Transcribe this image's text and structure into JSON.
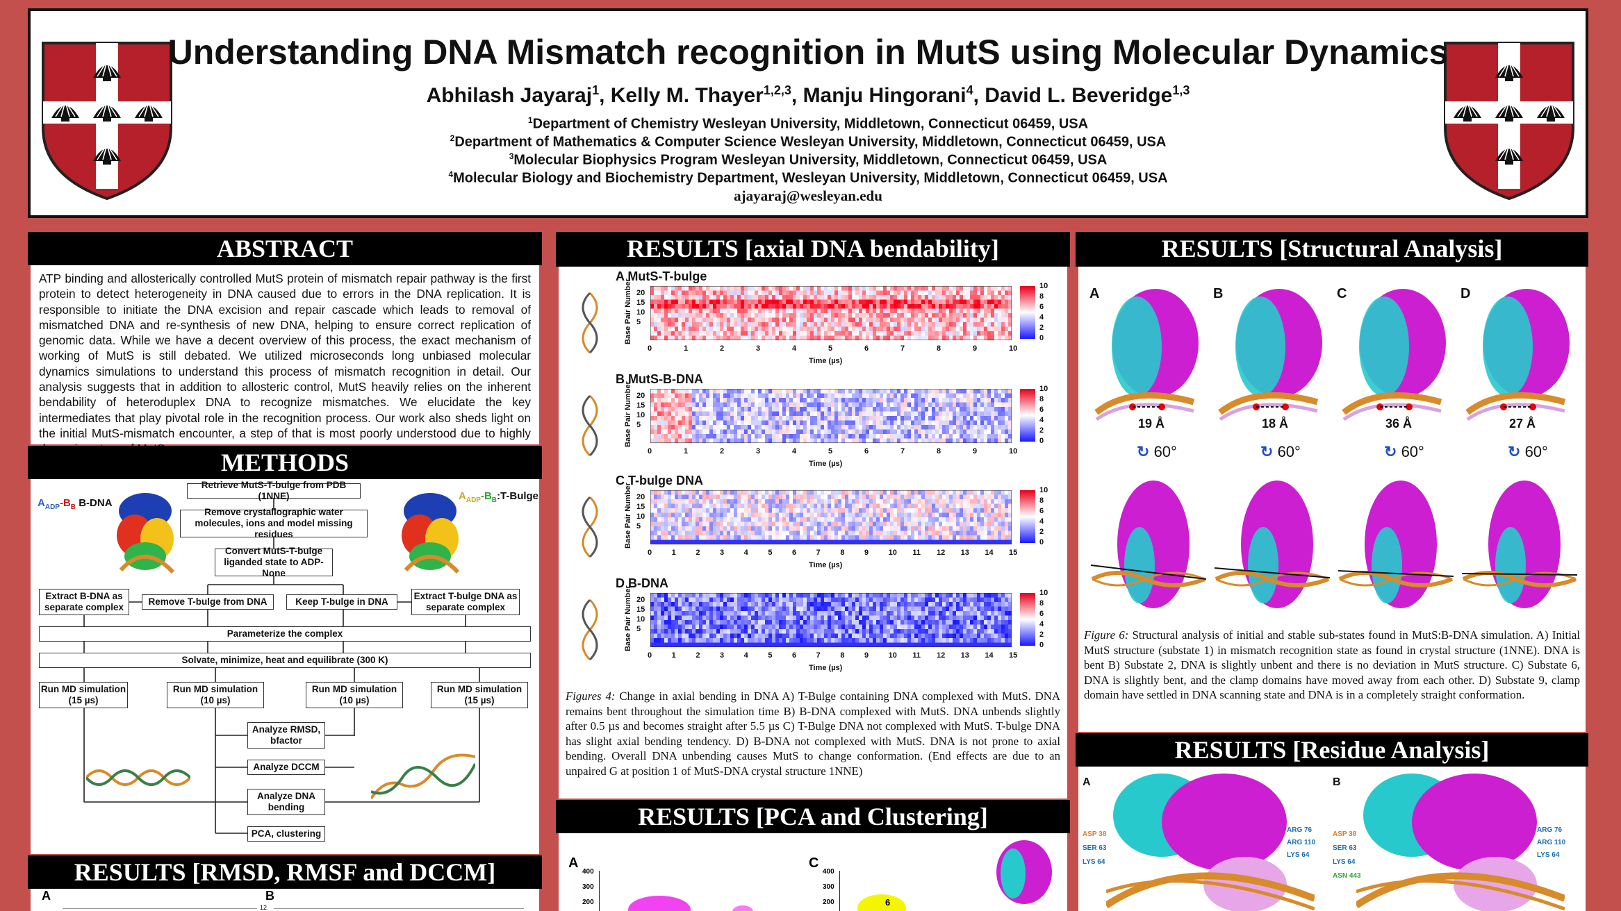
{
  "header": {
    "title": "Understanding DNA Mismatch recognition in MutS using Molecular Dynamics",
    "authors": [
      {
        "name": "Abhilash Jayaraj",
        "sup": "1"
      },
      {
        "name": "Kelly M. Thayer",
        "sup": "1,2,3"
      },
      {
        "name": "Manju Hingorani",
        "sup": "4"
      },
      {
        "name": "David L. Beveridge",
        "sup": "1,3"
      }
    ],
    "affiliations": [
      {
        "sup": "1",
        "text": "Department of Chemistry Wesleyan University, Middletown, Connecticut 06459, USA"
      },
      {
        "sup": "2",
        "text": "Department of Mathematics & Computer Science Wesleyan University, Middletown, Connecticut 06459, USA"
      },
      {
        "sup": "3",
        "text": "Molecular Biophysics Program Wesleyan University, Middletown, Connecticut 06459, USA"
      },
      {
        "sup": "4",
        "text": "Molecular Biology and Biochemistry Department, Wesleyan University, Middletown, Connecticut 06459, USA"
      }
    ],
    "email": "ajayaraj@wesleyan.edu",
    "crest_colors": {
      "red": "#b5202a",
      "white": "#ffffff",
      "outline": "#222222"
    }
  },
  "abstract": {
    "heading": "ABSTRACT",
    "text": "ATP binding and allosterically controlled MutS protein of mismatch repair pathway is the first protein to detect heterogeneity in DNA caused due to errors in the DNA replication. It is responsible to initiate the DNA excision and repair cascade which leads to removal of mismatched DNA and re-synthesis of new DNA, helping to ensure correct replication of genomic data. While we have a decent overview of this process, the exact mechanism of working of MutS is still debated. We utilized microseconds long unbiased molecular dynamics simulations to understand this process of mismatch recognition in detail. Our analysis suggests that in addition to allosteric control, MutS heavily relies on the inherent bendability of heteroduplex DNA to recognize mismatches. We elucidate the key intermediates that play pivotal role in the recognition process. Our work also sheds light on the initial MutS-mismatch encounter, a step of that is most poorly understood due to highly dynamic nature of MutS."
  },
  "methods": {
    "heading": "METHODS",
    "left_label": {
      "prefix": "A",
      "sub1": "ADP",
      "mid": "-B",
      "sub2": "B",
      "suffix": " B-DNA"
    },
    "right_label": {
      "prefix": "A",
      "sub1": "ADP",
      "mid": "-B",
      "sub2": "B",
      "suffix": ":T-Bulge"
    },
    "boxes": {
      "retrieve": "Retrieve MutS-T-bulge from PDB (1NNE)",
      "remove_water": "Remove crystallographic water molecules, ions and model missing residues",
      "convert": "Convert MutS-T-bulge liganded state to ADP-None",
      "extract_bdna": "Extract B-DNA as separate complex",
      "remove_tbulge": "Remove T-bulge from DNA",
      "keep_tbulge": "Keep T-bulge in DNA",
      "extract_tbulge": "Extract T-bulge DNA as separate complex",
      "parameterize": "Parameterize the complex",
      "solvate": "Solvate, minimize, heat and equilibrate (300 K)",
      "md1": "Run MD simulation (15 µs)",
      "md2": "Run MD simulation (10 µs)",
      "md3": "Run MD simulation (10 µs)",
      "md4": "Run MD simulation (15 µs)",
      "rmsd": "Analyze RMSD, bfactor",
      "dccm": "Analyze DCCM",
      "bending": "Analyze DNA bending",
      "pca": "PCA, clustering"
    }
  },
  "rmsd_section": {
    "heading": "RESULTS [RMSD, RMSF and DCCM]",
    "panel_a": "A",
    "panel_b": "B",
    "tick_12": "12"
  },
  "bendability": {
    "heading": "RESULTS [axial DNA bendability]",
    "ylabel": "Base Pair Number",
    "xlabel": "Time (µs)",
    "colorbar_ticks": [
      "10",
      "8",
      "6",
      "4",
      "2",
      "0"
    ],
    "y_ticks": [
      "20",
      "15",
      "10",
      "5"
    ],
    "colors": {
      "low": "#1a1aff",
      "mid": "#ffffff",
      "high": "#e6001a"
    },
    "panels": [
      {
        "letter": "A",
        "name": "MutS-T-bulge",
        "x_ticks": [
          "0",
          "1",
          "2",
          "3",
          "4",
          "5",
          "6",
          "7",
          "8",
          "9",
          "10"
        ]
      },
      {
        "letter": "B",
        "name": "MutS-B-DNA",
        "x_ticks": [
          "0",
          "1",
          "2",
          "3",
          "4",
          "5",
          "6",
          "7",
          "8",
          "9",
          "10"
        ]
      },
      {
        "letter": "C",
        "name": "T-bulge DNA",
        "x_ticks": [
          "0",
          "1",
          "2",
          "3",
          "4",
          "5",
          "6",
          "7",
          "8",
          "9",
          "10",
          "11",
          "12",
          "13",
          "14",
          "15"
        ]
      },
      {
        "letter": "D",
        "name": "B-DNA",
        "x_ticks": [
          "0",
          "1",
          "2",
          "3",
          "4",
          "5",
          "6",
          "7",
          "8",
          "9",
          "10",
          "11",
          "12",
          "13",
          "14",
          "15"
        ]
      }
    ],
    "caption": {
      "label": "Figures 4:",
      "text": " Change in axial bending in DNA A) T-Bulge containing DNA complexed with MutS. DNA remains bent throughout the simulation time B) B-DNA complexed with MutS. DNA unbends slightly after 0.5 µs and becomes straight after 5.5 µs C) T-Bulge DNA not complexed with MutS. T-bulge DNA has slight axial bending tendency. D) B-DNA not complexed with MutS. DNA is not prone to axial bending. Overall DNA unbending causes MutS to change conformation. (End effects are due to an unpaired G at position 1 of MutS-DNA crystal structure 1NNE)"
    }
  },
  "pca": {
    "heading": "RESULTS [PCA and Clustering]",
    "panel_a": "A",
    "panel_c": "C",
    "y_ticks": [
      "400",
      "300",
      "200"
    ],
    "cluster_label": "6"
  },
  "structural": {
    "heading": "RESULTS [Structural Analysis]",
    "panels": [
      {
        "letter": "A",
        "distance": "19 Å"
      },
      {
        "letter": "B",
        "distance": "18 Å"
      },
      {
        "letter": "C",
        "distance": "36 Å"
      },
      {
        "letter": "D",
        "distance": "27 Å"
      }
    ],
    "rotation": "60°",
    "colors": {
      "magenta": "#cc1fd1",
      "cyan": "#27c9cc",
      "dna": "#d78b2a"
    },
    "caption": {
      "label": "Figure 6:",
      "text": " Structural analysis of initial and stable sub-states found in MutS:B-DNA simulation. A) Initial MutS structure (substate 1) in mismatch recognition state as found in crystal structure (1NNE). DNA is bent B) Substate 2, DNA is slightly unbent and there is no deviation in MutS structure. C) Substate 6, DNA is slightly bent, and the clamp domains have moved away from each other. D) Substate 9, clamp domain have settled in DNA scanning state and DNA is in a completely straight conformation."
    }
  },
  "residue": {
    "heading": "RESULTS [Residue Analysis]",
    "panel_a": "A",
    "panel_b": "B",
    "labels_a_left": [
      "ASP 38",
      "SER 63",
      "LYS 64"
    ],
    "labels_a_right": [
      "ARG 76",
      "ARG 110",
      "LYS 64"
    ],
    "labels_b_left": [
      "ASP 38",
      "SER 63",
      "LYS 64",
      "ASN 443"
    ],
    "labels_b_right": [
      "ARG 76",
      "ARG 110",
      "LYS 64"
    ]
  }
}
